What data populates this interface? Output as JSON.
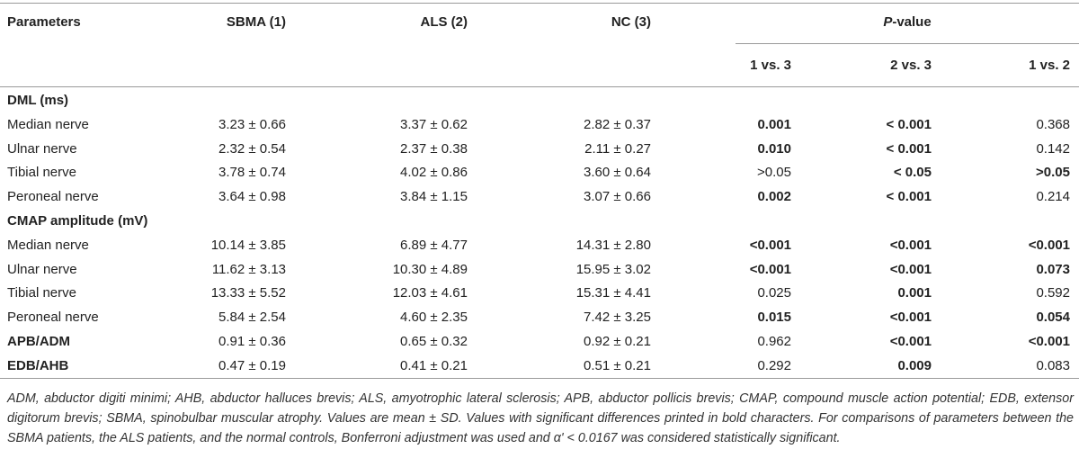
{
  "table": {
    "headers": {
      "parameters": "Parameters",
      "sbma": "SBMA (1)",
      "als": "ALS (2)",
      "nc": "NC (3)",
      "pvalue_prefix": "P",
      "pvalue_suffix": "-value",
      "cmp_1_3": "1 vs. 3",
      "cmp_2_3": "2 vs. 3",
      "cmp_1_2": "1 vs. 2"
    },
    "rows": [
      {
        "label": "DML (ms)",
        "section": true
      },
      {
        "label": "Median nerve",
        "sbma": "3.23 ± 0.66",
        "als": "3.37 ± 0.62",
        "nc": "2.82 ± 0.37",
        "p13": "0.001",
        "p13_bold": true,
        "p23": "< 0.001",
        "p23_bold": true,
        "p12": "0.368",
        "p12_bold": false
      },
      {
        "label": "Ulnar nerve",
        "sbma": "2.32 ± 0.54",
        "als": "2.37 ± 0.38",
        "nc": "2.11 ± 0.27",
        "p13": "0.010",
        "p13_bold": true,
        "p23": "< 0.001",
        "p23_bold": true,
        "p12": "0.142",
        "p12_bold": false
      },
      {
        "label": "Tibial nerve",
        "sbma": "3.78 ± 0.74",
        "als": "4.02 ± 0.86",
        "nc": "3.60 ± 0.64",
        "p13": ">0.05",
        "p13_bold": false,
        "p23": "< 0.05",
        "p23_bold": true,
        "p12": ">0.05",
        "p12_bold": true
      },
      {
        "label": "Peroneal nerve",
        "sbma": "3.64 ± 0.98",
        "als": "3.84 ± 1.15",
        "nc": "3.07 ± 0.66",
        "p13": "0.002",
        "p13_bold": true,
        "p23": "< 0.001",
        "p23_bold": true,
        "p12": "0.214",
        "p12_bold": false
      },
      {
        "label": "CMAP amplitude (mV)",
        "section": true
      },
      {
        "label": "Median nerve",
        "sbma": "10.14 ± 3.85",
        "als": "6.89 ± 4.77",
        "nc": "14.31 ± 2.80",
        "p13": "<0.001",
        "p13_bold": true,
        "p23": "<0.001",
        "p23_bold": true,
        "p12": "<0.001",
        "p12_bold": true
      },
      {
        "label": "Ulnar nerve",
        "sbma": "11.62 ± 3.13",
        "als": "10.30 ± 4.89",
        "nc": "15.95 ± 3.02",
        "p13": "<0.001",
        "p13_bold": true,
        "p23": "<0.001",
        "p23_bold": true,
        "p12": "0.073",
        "p12_bold": true
      },
      {
        "label": "Tibial nerve",
        "sbma": "13.33 ± 5.52",
        "als": "12.03 ± 4.61",
        "nc": "15.31 ± 4.41",
        "p13": "0.025",
        "p13_bold": false,
        "p23": "0.001",
        "p23_bold": true,
        "p12": "0.592",
        "p12_bold": false
      },
      {
        "label": "Peroneal nerve",
        "sbma": "5.84 ± 2.54",
        "als": "4.60 ± 2.35",
        "nc": "7.42 ± 3.25",
        "p13": "0.015",
        "p13_bold": true,
        "p23": "<0.001",
        "p23_bold": true,
        "p12": "0.054",
        "p12_bold": true
      },
      {
        "label": "APB/ADM",
        "label_bold": true,
        "sbma": "0.91 ± 0.36",
        "als": "0.65 ± 0.32",
        "nc": "0.92 ± 0.21",
        "p13": "0.962",
        "p13_bold": false,
        "p23": "<0.001",
        "p23_bold": true,
        "p12": "<0.001",
        "p12_bold": true
      },
      {
        "label": "EDB/AHB",
        "label_bold": true,
        "sbma": "0.47 ± 0.19",
        "als": "0.41 ± 0.21",
        "nc": "0.51 ± 0.21",
        "p13": "0.292",
        "p13_bold": false,
        "p23": "0.009",
        "p23_bold": true,
        "p12": "0.083",
        "p12_bold": false
      }
    ]
  },
  "footnote": "ADM, abductor digiti minimi; AHB, abductor halluces brevis; ALS, amyotrophic lateral sclerosis; APB, abductor pollicis brevis; CMAP, compound muscle action potential; EDB, extensor digitorum brevis; SBMA, spinobulbar muscular atrophy. Values are mean ± SD. Values with significant differences printed in bold characters. For comparisons of parameters between the SBMA patients, the ALS patients, and the normal controls, Bonferroni adjustment was used and α' < 0.0167 was considered statistically significant."
}
